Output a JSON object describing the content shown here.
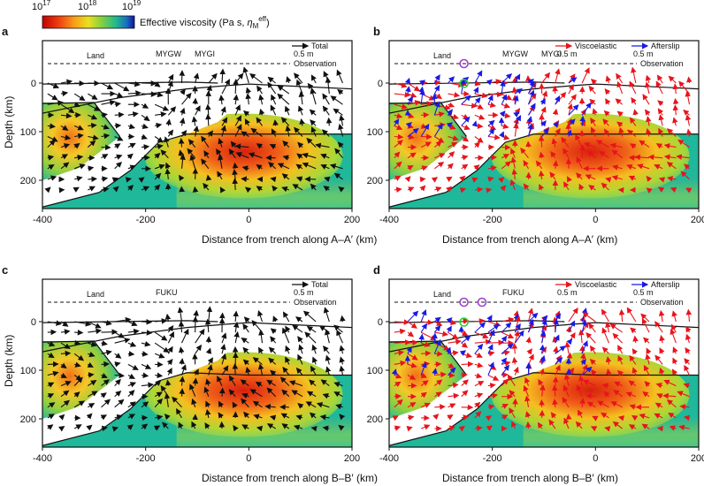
{
  "colorbar": {
    "tick_1": "10",
    "tick_1_exp": "17",
    "tick_2": "10",
    "tick_2_exp": "18",
    "tick_3": "10",
    "tick_3_exp": "19",
    "label": "Effective viscosity (Pa s, ",
    "label_symbol": "η",
    "label_sub": "M",
    "label_sup": "eff",
    "label_end": ")"
  },
  "colors": {
    "black_arrow": "#111111",
    "red_arrow": "#e8141c",
    "blue_arrow": "#1a1ae6",
    "slab": "#1fb89a",
    "hot": "#e23a12",
    "purple_marker": "#a040d0",
    "green_marker": "#2ad02a"
  },
  "x_axis": {
    "ticks": [
      "-400",
      "-200",
      "0",
      "200"
    ],
    "label_top": "Distance from trench along A–A′ (km)",
    "label_bottom": "Distance from trench along B–B′ (km)"
  },
  "y_axis": {
    "ticks": [
      "0",
      "100",
      "200"
    ],
    "label": "Depth (km)"
  },
  "panels": [
    {
      "id": "a",
      "letter": "a",
      "land": "Land",
      "stations": [
        "MYGW",
        "MYGI"
      ],
      "legend": [
        "Total"
      ],
      "scale": "0.5 m",
      "observation": "Observation"
    },
    {
      "id": "b",
      "letter": "b",
      "land": "Land",
      "stations": [
        "MYGW",
        "MYGI"
      ],
      "legend": [
        "Viscoelastic",
        "Afterslip"
      ],
      "scale": "0.5 m",
      "observation": "Observation"
    },
    {
      "id": "c",
      "letter": "c",
      "land": "Land",
      "stations": [
        "FUKU"
      ],
      "legend": [
        "Total"
      ],
      "scale": "0.5 m",
      "observation": "Observation"
    },
    {
      "id": "d",
      "letter": "d",
      "land": "Land",
      "stations": [
        "FUKU"
      ],
      "legend": [
        "Viscoelastic",
        "Afterslip"
      ],
      "scale": "0.5 m",
      "observation": "Observation"
    }
  ]
}
